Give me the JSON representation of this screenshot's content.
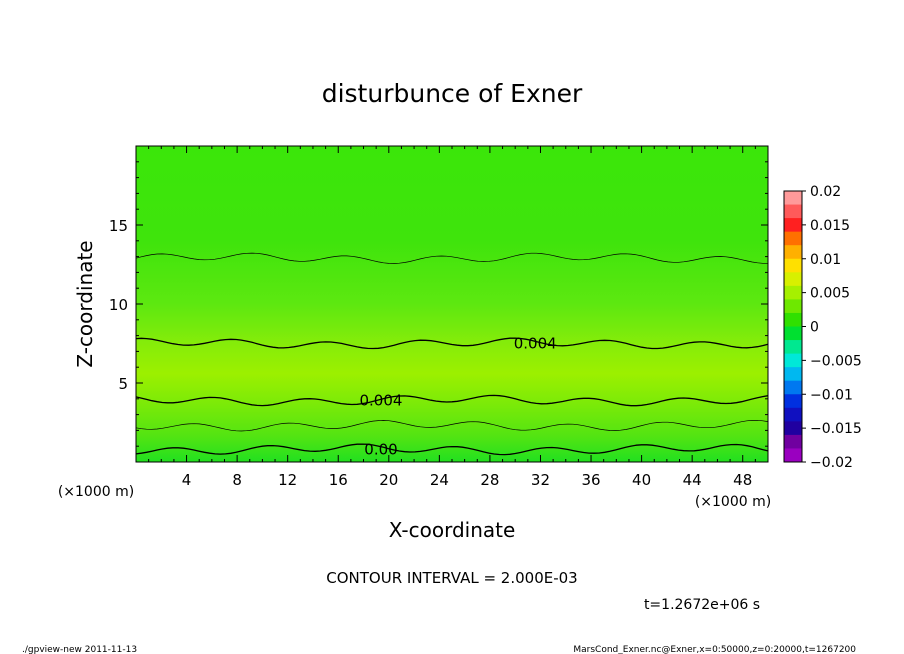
{
  "chart_data": {
    "type": "heatmap",
    "title": "disturbunce of Exner",
    "xlabel": "X-coordinate",
    "ylabel": "Z-coordinate",
    "x_unit": "(×1000 m)",
    "y_unit": "(×1000 m)",
    "xlim": [
      0,
      50
    ],
    "ylim": [
      0,
      20
    ],
    "x_ticks": [
      4,
      8,
      12,
      16,
      20,
      24,
      28,
      32,
      36,
      40,
      44,
      48
    ],
    "y_ticks": [
      5,
      10,
      15
    ],
    "contour_interval_text": "CONTOUR INTERVAL = 2.000E-03",
    "time_text": "t=1.2672e+06 s",
    "colorbar": {
      "levels": [
        0.02,
        0.015,
        0.01,
        0.005,
        0,
        -0.005,
        -0.01,
        -0.015,
        -0.02
      ],
      "tick_labels": [
        "0.02",
        "0.015",
        "0.01",
        "0.005",
        "0",
        "−0.005",
        "−0.01",
        "−0.015",
        "−0.02"
      ],
      "colors_top_to_bottom": [
        "#ff9a9a",
        "#ff5a5a",
        "#ff2020",
        "#ff7000",
        "#ffb000",
        "#ffe000",
        "#d8f000",
        "#a6f000",
        "#6ee800",
        "#30e000",
        "#00e030",
        "#00e890",
        "#00e8d8",
        "#00b8f0",
        "#0078f0",
        "#0030e0",
        "#1010c0",
        "#2000a0",
        "#7000a0",
        "#9a00c0"
      ]
    },
    "contour_lines": [
      {
        "z": 12.9,
        "label": "",
        "thin": true
      },
      {
        "z": 7.5,
        "label": "0.004",
        "thin": false
      },
      {
        "z": 3.9,
        "label": "0.004",
        "thin": false
      },
      {
        "z": 2.3,
        "label": "",
        "thin": true
      },
      {
        "z": 0.8,
        "label": "0.00",
        "thin": false
      }
    ]
  },
  "footer": {
    "left": "./gpview-new   2011-11-13",
    "right": "MarsCond_Exner.nc@Exner,x=0:50000,z=0:20000,t=1267200"
  }
}
